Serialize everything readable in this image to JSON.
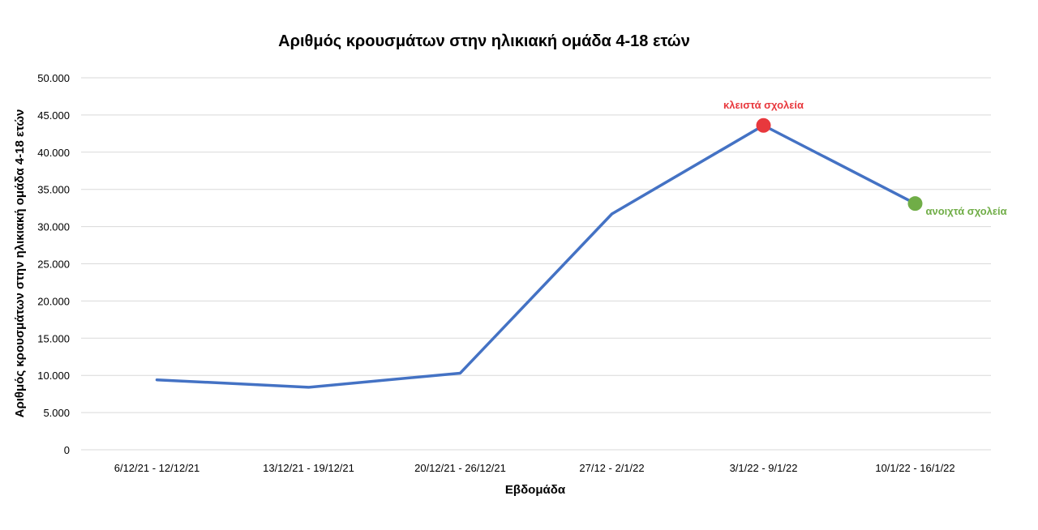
{
  "chart_data": {
    "type": "line",
    "title": "Αριθμός κρουσμάτων στην ηλικιακή ομάδα 4-18 ετών",
    "xlabel": "Εβδομάδα",
    "ylabel": "Αριθμός κρουσμάτων στην ηλικιακή ομάδα 4-18 ετών",
    "categories": [
      "6/12/21 - 12/12/21",
      "13/12/21 - 19/12/21",
      "20/12/21 - 26/12/21",
      "27/12 - 2/1/22",
      "3/1/22 - 9/1/22",
      "10/1/22 - 16/1/22"
    ],
    "series": [
      {
        "values": [
          9400,
          8400,
          10300,
          31700,
          43600,
          33100
        ],
        "color": "#4472c4"
      }
    ],
    "ylim": [
      0,
      50000
    ],
    "yticks": [
      0,
      5000,
      10000,
      15000,
      20000,
      25000,
      30000,
      35000,
      40000,
      45000,
      50000
    ],
    "ytick_labels": [
      "0",
      "5.000",
      "10.000",
      "15.000",
      "20.000",
      "25.000",
      "30.000",
      "35.000",
      "40.000",
      "45.000",
      "50.000"
    ],
    "grid": true,
    "annotations": [
      {
        "category_index": 4,
        "text": "κλειστά σχολεία",
        "color": "#e8383d",
        "position": "above"
      },
      {
        "category_index": 5,
        "text": "ανοιχτά σχολεία",
        "color": "#70ad47",
        "position": "right"
      }
    ]
  }
}
